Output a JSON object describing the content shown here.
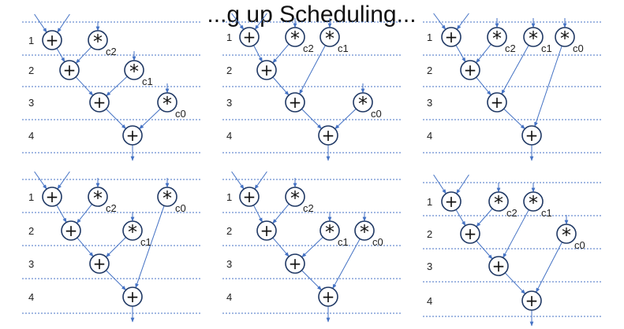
{
  "title": "...g up Scheduling...",
  "colors": {
    "wire": "#4472c4",
    "node_stroke": "#1f3864",
    "guide": "#4472c4"
  },
  "diagrams": [
    {
      "name": "schedule-1",
      "rows": [
        "1",
        "2",
        "3",
        "4"
      ],
      "nodes": [
        {
          "id": "a1",
          "op": "+",
          "row": 1
        },
        {
          "id": "m2",
          "op": "*",
          "row": 1,
          "const": "c2"
        },
        {
          "id": "a2",
          "op": "+",
          "row": 2
        },
        {
          "id": "m1",
          "op": "*",
          "row": 2,
          "const": "c1"
        },
        {
          "id": "a3",
          "op": "+",
          "row": 3
        },
        {
          "id": "m0",
          "op": "*",
          "row": 3,
          "const": "c0"
        },
        {
          "id": "a4",
          "op": "+",
          "row": 4
        }
      ],
      "edges": [
        [
          "a1",
          "a2"
        ],
        [
          "m2",
          "a2"
        ],
        [
          "a2",
          "a3"
        ],
        [
          "m1",
          "a3"
        ],
        [
          "a3",
          "a4"
        ],
        [
          "m0",
          "a4"
        ]
      ],
      "inputs": [
        [
          "a1",
          -14
        ],
        [
          "a1",
          14
        ],
        [
          "m2",
          0
        ],
        [
          "m1",
          0
        ],
        [
          "m0",
          0
        ]
      ]
    },
    {
      "name": "schedule-2",
      "rows": [
        "1",
        "2",
        "3",
        "4"
      ],
      "nodes": [
        {
          "id": "a1",
          "op": "+",
          "row": 1
        },
        {
          "id": "m2",
          "op": "*",
          "row": 1,
          "const": "c2"
        },
        {
          "id": "m1",
          "op": "*",
          "row": 1,
          "const": "c1"
        },
        {
          "id": "a2",
          "op": "+",
          "row": 2
        },
        {
          "id": "a3",
          "op": "+",
          "row": 3
        },
        {
          "id": "m0",
          "op": "*",
          "row": 3,
          "const": "c0"
        },
        {
          "id": "a4",
          "op": "+",
          "row": 4
        }
      ],
      "edges": [
        [
          "a1",
          "a2"
        ],
        [
          "m2",
          "a2"
        ],
        [
          "a2",
          "a3"
        ],
        [
          "m1",
          "a3"
        ],
        [
          "a3",
          "a4"
        ],
        [
          "m0",
          "a4"
        ]
      ],
      "inputs": [
        [
          "a1",
          -14
        ],
        [
          "a1",
          14
        ],
        [
          "m2",
          0
        ],
        [
          "m1",
          0
        ],
        [
          "m0",
          0
        ]
      ]
    },
    {
      "name": "schedule-3",
      "rows": [
        "1",
        "2",
        "3",
        "4"
      ],
      "nodes": [
        {
          "id": "a1",
          "op": "+",
          "row": 1
        },
        {
          "id": "m2",
          "op": "*",
          "row": 1,
          "const": "c2"
        },
        {
          "id": "m1",
          "op": "*",
          "row": 1,
          "const": "c1"
        },
        {
          "id": "m0",
          "op": "*",
          "row": 1,
          "const": "c0"
        },
        {
          "id": "a2",
          "op": "+",
          "row": 2
        },
        {
          "id": "a3",
          "op": "+",
          "row": 3
        },
        {
          "id": "a4",
          "op": "+",
          "row": 4
        }
      ],
      "edges": [
        [
          "a1",
          "a2"
        ],
        [
          "m2",
          "a2"
        ],
        [
          "a2",
          "a3"
        ],
        [
          "m1",
          "a3"
        ],
        [
          "a3",
          "a4"
        ],
        [
          "m0",
          "a4"
        ]
      ],
      "inputs": [
        [
          "a1",
          -14
        ],
        [
          "a1",
          14
        ],
        [
          "m2",
          0
        ],
        [
          "m1",
          0
        ],
        [
          "m0",
          0
        ]
      ]
    },
    {
      "name": "schedule-4",
      "rows": [
        "1",
        "2",
        "3",
        "4"
      ],
      "nodes": [
        {
          "id": "a1",
          "op": "+",
          "row": 1
        },
        {
          "id": "m2",
          "op": "*",
          "row": 1,
          "const": "c2"
        },
        {
          "id": "m0",
          "op": "*",
          "row": 1,
          "const": "c0"
        },
        {
          "id": "a2",
          "op": "+",
          "row": 2
        },
        {
          "id": "m1",
          "op": "*",
          "row": 2,
          "const": "c1"
        },
        {
          "id": "a3",
          "op": "+",
          "row": 3
        },
        {
          "id": "a4",
          "op": "+",
          "row": 4
        }
      ],
      "edges": [
        [
          "a1",
          "a2"
        ],
        [
          "m2",
          "a2"
        ],
        [
          "a2",
          "a3"
        ],
        [
          "m1",
          "a3"
        ],
        [
          "a3",
          "a4"
        ],
        [
          "m0",
          "a4"
        ]
      ],
      "inputs": [
        [
          "a1",
          -14
        ],
        [
          "a1",
          14
        ],
        [
          "m2",
          0
        ],
        [
          "m1",
          0
        ],
        [
          "m0",
          0
        ]
      ]
    },
    {
      "name": "schedule-5",
      "rows": [
        "1",
        "2",
        "3",
        "4"
      ],
      "nodes": [
        {
          "id": "a1",
          "op": "+",
          "row": 1
        },
        {
          "id": "m2",
          "op": "*",
          "row": 1,
          "const": "c2"
        },
        {
          "id": "a2",
          "op": "+",
          "row": 2
        },
        {
          "id": "m1",
          "op": "*",
          "row": 2,
          "const": "c1"
        },
        {
          "id": "m0",
          "op": "*",
          "row": 2,
          "const": "c0"
        },
        {
          "id": "a3",
          "op": "+",
          "row": 3
        },
        {
          "id": "a4",
          "op": "+",
          "row": 4
        }
      ],
      "edges": [
        [
          "a1",
          "a2"
        ],
        [
          "m2",
          "a2"
        ],
        [
          "a2",
          "a3"
        ],
        [
          "m1",
          "a3"
        ],
        [
          "a3",
          "a4"
        ],
        [
          "m0",
          "a4"
        ]
      ],
      "inputs": [
        [
          "a1",
          -14
        ],
        [
          "a1",
          14
        ],
        [
          "m2",
          0
        ],
        [
          "m1",
          0
        ],
        [
          "m0",
          0
        ]
      ]
    },
    {
      "name": "schedule-6",
      "rows": [
        "1",
        "2",
        "3",
        "4"
      ],
      "nodes": [
        {
          "id": "a1",
          "op": "+",
          "row": 1
        },
        {
          "id": "m2",
          "op": "*",
          "row": 1,
          "const": "c2"
        },
        {
          "id": "m1",
          "op": "*",
          "row": 1,
          "const": "c1"
        },
        {
          "id": "a2",
          "op": "+",
          "row": 2
        },
        {
          "id": "m0",
          "op": "*",
          "row": 2,
          "const": "c0"
        },
        {
          "id": "a3",
          "op": "+",
          "row": 3
        },
        {
          "id": "a4",
          "op": "+",
          "row": 4
        }
      ],
      "edges": [
        [
          "a1",
          "a2"
        ],
        [
          "m2",
          "a2"
        ],
        [
          "a2",
          "a3"
        ],
        [
          "m1",
          "a3"
        ],
        [
          "a3",
          "a4"
        ],
        [
          "m0",
          "a4"
        ]
      ],
      "inputs": [
        [
          "a1",
          -14
        ],
        [
          "a1",
          14
        ],
        [
          "m2",
          0
        ],
        [
          "m1",
          0
        ],
        [
          "m0",
          0
        ]
      ]
    }
  ]
}
